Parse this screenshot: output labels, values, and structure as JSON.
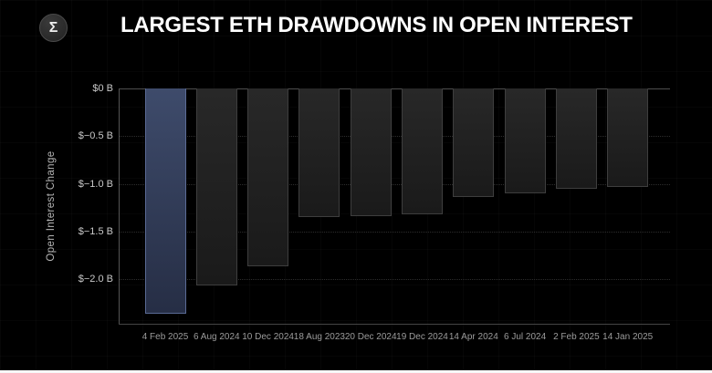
{
  "header": {
    "logo_glyph": "Σ",
    "title": "LARGEST ETH DRAWDOWNS IN OPEN INTEREST"
  },
  "chart_data": {
    "type": "bar",
    "title": "LARGEST ETH DRAWDOWNS IN OPEN INTEREST",
    "ylabel": "Open Interest Change",
    "xlabel": "",
    "unit": "billions USD",
    "categories": [
      "4 Feb 2025",
      "6 Aug 2024",
      "10 Dec 2024",
      "18 Aug 2023",
      "20 Dec 2024",
      "19 Dec 2024",
      "14 Apr 2024",
      "6 Jul 2024",
      "2 Feb 2025",
      "14 Jan 2025"
    ],
    "values": [
      -2.36,
      -2.07,
      -1.87,
      -1.35,
      -1.34,
      -1.32,
      -1.14,
      -1.1,
      -1.05,
      -1.03
    ],
    "highlight_index": 0,
    "highlighted_category": "4 Feb 2025",
    "ylim": [
      -2.47,
      0
    ],
    "yticks": [
      {
        "label": "$0 B",
        "value": 0
      },
      {
        "label": "$−0.5 B",
        "value": -0.5
      },
      {
        "label": "$−1.0 B",
        "value": -1.0
      },
      {
        "label": "$−1.5 B",
        "value": -1.5
      },
      {
        "label": "$−2.0 B",
        "value": -2.0
      }
    ],
    "grid": "horizontal-dotted",
    "legend": "none"
  },
  "colors": {
    "background": "#000000",
    "title_text": "#ffffff",
    "axis_text": "#c9c9c9",
    "x_label_text": "#9b9b9b",
    "bar_fill": "#222222",
    "bar_border": "#3e3e3e",
    "highlight_bar_fill": "#36425e",
    "highlight_bar_border": "#5a6a94",
    "zero_line": "#4f4f4f",
    "gridline": "#2d2d2d"
  }
}
